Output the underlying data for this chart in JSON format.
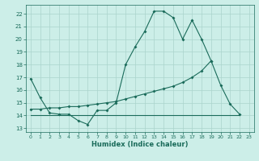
{
  "xlabel": "Humidex (Indice chaleur)",
  "background_color": "#cceee8",
  "line_color": "#1a6b5a",
  "grid_color": "#aad4cc",
  "xlim": [
    -0.5,
    23.5
  ],
  "ylim": [
    12.7,
    22.7
  ],
  "xticks": [
    0,
    1,
    2,
    3,
    4,
    5,
    6,
    7,
    8,
    9,
    10,
    11,
    12,
    13,
    14,
    15,
    16,
    17,
    18,
    19,
    20,
    21,
    22,
    23
  ],
  "yticks": [
    13,
    14,
    15,
    16,
    17,
    18,
    19,
    20,
    21,
    22
  ],
  "series1_x": [
    0,
    1,
    2,
    3,
    4,
    5,
    6,
    7,
    8,
    9,
    10,
    11,
    12,
    13,
    14,
    15,
    16,
    17,
    18,
    19,
    20,
    21,
    22
  ],
  "series1_y": [
    16.9,
    15.4,
    14.2,
    14.1,
    14.1,
    13.6,
    13.3,
    14.4,
    14.4,
    15.0,
    18.0,
    19.4,
    20.6,
    22.2,
    22.2,
    21.7,
    20.0,
    21.5,
    20.0,
    18.3,
    16.4,
    14.9,
    14.1
  ],
  "series2_x": [
    0,
    1,
    2,
    3,
    4,
    5,
    6,
    7,
    8,
    9,
    10,
    11,
    12,
    13,
    14,
    15,
    16,
    17,
    18,
    19
  ],
  "series2_y": [
    14.5,
    14.5,
    14.6,
    14.6,
    14.7,
    14.7,
    14.8,
    14.9,
    15.0,
    15.1,
    15.3,
    15.5,
    15.7,
    15.9,
    16.1,
    16.3,
    16.6,
    17.0,
    17.5,
    18.3
  ],
  "series3_x": [
    0,
    1,
    2,
    3,
    4,
    5,
    6,
    7,
    8,
    9,
    10,
    11,
    12,
    13,
    14,
    15,
    16,
    17,
    18,
    19,
    20,
    21,
    22
  ],
  "series3_y": [
    14.0,
    14.0,
    14.0,
    14.0,
    14.0,
    14.0,
    14.0,
    14.0,
    14.0,
    14.0,
    14.0,
    14.0,
    14.0,
    14.0,
    14.0,
    14.0,
    14.0,
    14.0,
    14.0,
    14.0,
    14.0,
    14.0,
    14.0
  ]
}
